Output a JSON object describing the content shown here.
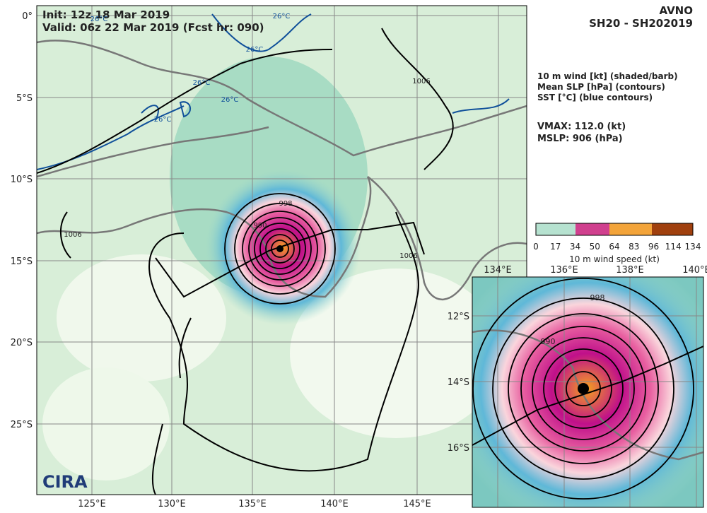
{
  "header": {
    "init": "Init:   12z 18 Mar 2019",
    "valid": "Valid: 06z 22 Mar 2019 (Fcst hr: 090)",
    "model": "AVNO",
    "storm": "SH20 - SH202019"
  },
  "info": {
    "lines": [
      "10 m wind [kt] (shaded/barb)",
      "Mean SLP [hPa] (contours)",
      "SST [°C] (blue contours)"
    ],
    "vmax": "VMAX: 112.0 (kt)",
    "mslp": "MSLP:  906 (hPa)"
  },
  "colorbar": {
    "ticks": [
      "0",
      "17",
      "34",
      "50",
      "64",
      "83",
      "96",
      "114",
      "134"
    ],
    "label": "10 m wind speed (kt)"
  },
  "map": {
    "lat_labels": [
      "0°",
      "5°S",
      "10°S",
      "15°S",
      "20°S",
      "25°S"
    ],
    "lon_labels": [
      "125°E",
      "130°E",
      "135°E",
      "140°E",
      "145°E"
    ],
    "contour_labels": [
      "998",
      "990",
      "1006",
      "1006",
      "1006",
      "26°C",
      "26°C",
      "26°C",
      "26°C",
      "26°C",
      "26°C"
    ],
    "logo": "CIRA"
  },
  "inset": {
    "lon_labels": [
      "134°E",
      "136°E",
      "138°E",
      "140°E"
    ],
    "lat_labels": [
      "12°S",
      "14°S",
      "16°S"
    ],
    "contour_labels": [
      "998",
      "990"
    ]
  }
}
